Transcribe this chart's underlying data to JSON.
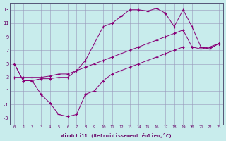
{
  "xlabel": "Windchill (Refroidissement éolien,°C)",
  "bg_color": "#c8ecec",
  "line_color": "#880077",
  "xlim": [
    -0.5,
    23.5
  ],
  "ylim": [
    -4,
    14
  ],
  "xticks": [
    0,
    1,
    2,
    3,
    4,
    5,
    6,
    7,
    8,
    9,
    10,
    11,
    12,
    13,
    14,
    15,
    16,
    17,
    18,
    19,
    20,
    21,
    22,
    23
  ],
  "yticks": [
    -3,
    -1,
    1,
    3,
    5,
    7,
    9,
    11,
    13
  ],
  "series1_x": [
    0,
    1,
    2,
    3,
    4,
    5,
    6,
    7,
    8,
    9,
    10,
    11,
    12,
    13,
    14,
    15,
    16,
    17,
    18,
    19,
    20,
    21,
    22,
    23
  ],
  "series1_y": [
    5,
    2.5,
    2.5,
    0.5,
    -0.8,
    -2.5,
    -2.8,
    -2.5,
    0.5,
    1.0,
    2.5,
    3.5,
    4.0,
    4.5,
    5.0,
    5.5,
    6.0,
    6.5,
    7.0,
    7.5,
    7.5,
    7.2,
    7.5,
    8.0
  ],
  "series2_x": [
    0,
    1,
    2,
    3,
    4,
    5,
    6,
    7,
    8,
    9,
    10,
    11,
    12,
    13,
    14,
    15,
    16,
    17,
    18,
    19,
    20,
    21,
    22,
    23
  ],
  "series2_y": [
    5,
    2.5,
    2.5,
    2.8,
    2.8,
    3.0,
    3.0,
    4.0,
    5.5,
    8.0,
    10.5,
    11.0,
    12.0,
    13.0,
    13.0,
    12.8,
    13.2,
    12.5,
    10.5,
    13.0,
    10.5,
    7.5,
    7.2,
    8.0
  ],
  "series3_x": [
    0,
    1,
    2,
    3,
    4,
    5,
    6,
    7,
    8,
    9,
    10,
    11,
    12,
    13,
    14,
    15,
    16,
    17,
    18,
    19,
    20,
    21,
    22,
    23
  ],
  "series3_y": [
    3,
    3,
    3,
    3,
    3.2,
    3.5,
    3.5,
    4.0,
    4.5,
    5.0,
    5.5,
    6.0,
    6.5,
    7.0,
    7.5,
    8.0,
    8.5,
    9.0,
    9.5,
    10.0,
    7.5,
    7.5,
    7.2,
    8.0
  ]
}
